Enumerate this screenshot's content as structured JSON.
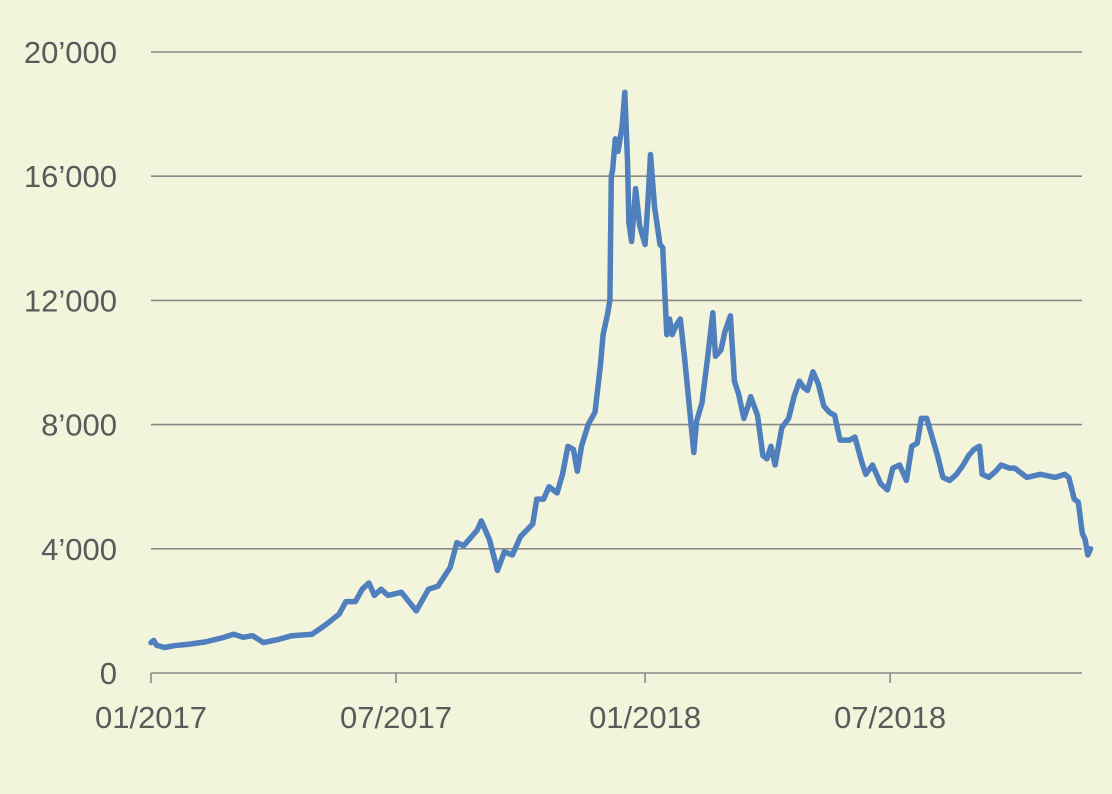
{
  "colors": {
    "background": "#f2f5dc",
    "line": "#4f7fbc",
    "grid": "#8a8a8a",
    "text": "#5a5a5a"
  },
  "chart_data": {
    "type": "line",
    "title": "",
    "xlabel": "",
    "ylabel": "",
    "ylim": [
      0,
      20000
    ],
    "xlim": [
      "2017-01-01",
      "2018-11-26"
    ],
    "grid": true,
    "y_ticks": [
      {
        "value": 0,
        "label": "0"
      },
      {
        "value": 4000,
        "label": "4’000"
      },
      {
        "value": 8000,
        "label": "8’000"
      },
      {
        "value": 12000,
        "label": "12’000"
      },
      {
        "value": 16000,
        "label": "16’000"
      },
      {
        "value": 20000,
        "label": "20’000"
      }
    ],
    "x_ticks": [
      {
        "value": "2017-01-01",
        "label": "01/2017"
      },
      {
        "value": "2017-07-01",
        "label": "07/2017"
      },
      {
        "value": "2018-01-01",
        "label": "01/2018"
      },
      {
        "value": "2018-07-01",
        "label": "07/2018"
      }
    ],
    "series": [
      {
        "points": [
          [
            "2017-01-01",
            980
          ],
          [
            "2017-01-03",
            1050
          ],
          [
            "2017-01-05",
            900
          ],
          [
            "2017-01-11",
            820
          ],
          [
            "2017-01-18",
            880
          ],
          [
            "2017-01-28",
            920
          ],
          [
            "2017-02-10",
            1000
          ],
          [
            "2017-02-24",
            1150
          ],
          [
            "2017-03-03",
            1250
          ],
          [
            "2017-03-10",
            1150
          ],
          [
            "2017-03-17",
            1200
          ],
          [
            "2017-03-25",
            980
          ],
          [
            "2017-04-05",
            1080
          ],
          [
            "2017-04-15",
            1200
          ],
          [
            "2017-04-30",
            1250
          ],
          [
            "2017-05-10",
            1550
          ],
          [
            "2017-05-20",
            1900
          ],
          [
            "2017-05-25",
            2300
          ],
          [
            "2017-06-01",
            2300
          ],
          [
            "2017-06-06",
            2700
          ],
          [
            "2017-06-11",
            2900
          ],
          [
            "2017-06-15",
            2500
          ],
          [
            "2017-06-20",
            2700
          ],
          [
            "2017-06-25",
            2500
          ],
          [
            "2017-07-05",
            2600
          ],
          [
            "2017-07-16",
            2000
          ],
          [
            "2017-07-25",
            2700
          ],
          [
            "2017-08-01",
            2800
          ],
          [
            "2017-08-10",
            3400
          ],
          [
            "2017-08-15",
            4200
          ],
          [
            "2017-08-20",
            4100
          ],
          [
            "2017-08-30",
            4600
          ],
          [
            "2017-09-02",
            4900
          ],
          [
            "2017-09-08",
            4300
          ],
          [
            "2017-09-14",
            3300
          ],
          [
            "2017-09-19",
            3900
          ],
          [
            "2017-09-25",
            3800
          ],
          [
            "2017-10-01",
            4400
          ],
          [
            "2017-10-10",
            4800
          ],
          [
            "2017-10-13",
            5600
          ],
          [
            "2017-10-18",
            5600
          ],
          [
            "2017-10-22",
            6000
          ],
          [
            "2017-10-28",
            5800
          ],
          [
            "2017-11-01",
            6400
          ],
          [
            "2017-11-05",
            7300
          ],
          [
            "2017-11-09",
            7200
          ],
          [
            "2017-11-12",
            6500
          ],
          [
            "2017-11-15",
            7300
          ],
          [
            "2017-11-20",
            8000
          ],
          [
            "2017-11-25",
            8400
          ],
          [
            "2017-11-29",
            9900
          ],
          [
            "2017-12-01",
            10900
          ],
          [
            "2017-12-04",
            11500
          ],
          [
            "2017-12-06",
            12000
          ],
          [
            "2017-12-07",
            16000
          ],
          [
            "2017-12-08",
            16200
          ],
          [
            "2017-12-10",
            17200
          ],
          [
            "2017-12-12",
            16800
          ],
          [
            "2017-12-15",
            17600
          ],
          [
            "2017-12-17",
            18700
          ],
          [
            "2017-12-19",
            16500
          ],
          [
            "2017-12-20",
            14500
          ],
          [
            "2017-12-22",
            13900
          ],
          [
            "2017-12-25",
            15600
          ],
          [
            "2017-12-28",
            14400
          ],
          [
            "2018-01-01",
            13800
          ],
          [
            "2018-01-03",
            15100
          ],
          [
            "2018-01-05",
            16700
          ],
          [
            "2018-01-08",
            15000
          ],
          [
            "2018-01-10",
            14400
          ],
          [
            "2018-01-12",
            13800
          ],
          [
            "2018-01-14",
            13700
          ],
          [
            "2018-01-17",
            10900
          ],
          [
            "2018-01-19",
            11400
          ],
          [
            "2018-01-21",
            10900
          ],
          [
            "2018-01-24",
            11200
          ],
          [
            "2018-01-27",
            11400
          ],
          [
            "2018-01-30",
            10200
          ],
          [
            "2018-02-02",
            8900
          ],
          [
            "2018-02-06",
            7100
          ],
          [
            "2018-02-08",
            8100
          ],
          [
            "2018-02-12",
            8700
          ],
          [
            "2018-02-16",
            10100
          ],
          [
            "2018-02-20",
            11600
          ],
          [
            "2018-02-22",
            10200
          ],
          [
            "2018-02-26",
            10400
          ],
          [
            "2018-03-01",
            11000
          ],
          [
            "2018-03-05",
            11500
          ],
          [
            "2018-03-08",
            9400
          ],
          [
            "2018-03-11",
            9000
          ],
          [
            "2018-03-15",
            8200
          ],
          [
            "2018-03-18",
            8600
          ],
          [
            "2018-03-20",
            8900
          ],
          [
            "2018-03-25",
            8300
          ],
          [
            "2018-03-29",
            7000
          ],
          [
            "2018-04-01",
            6900
          ],
          [
            "2018-04-04",
            7300
          ],
          [
            "2018-04-07",
            6700
          ],
          [
            "2018-04-12",
            7900
          ],
          [
            "2018-04-17",
            8200
          ],
          [
            "2018-04-21",
            8900
          ],
          [
            "2018-04-25",
            9400
          ],
          [
            "2018-04-28",
            9200
          ],
          [
            "2018-05-01",
            9100
          ],
          [
            "2018-05-05",
            9700
          ],
          [
            "2018-05-09",
            9300
          ],
          [
            "2018-05-13",
            8600
          ],
          [
            "2018-05-17",
            8400
          ],
          [
            "2018-05-21",
            8300
          ],
          [
            "2018-05-25",
            7500
          ],
          [
            "2018-06-01",
            7500
          ],
          [
            "2018-06-05",
            7600
          ],
          [
            "2018-06-10",
            6800
          ],
          [
            "2018-06-13",
            6400
          ],
          [
            "2018-06-18",
            6700
          ],
          [
            "2018-06-24",
            6100
          ],
          [
            "2018-06-29",
            5900
          ],
          [
            "2018-07-03",
            6600
          ],
          [
            "2018-07-08",
            6700
          ],
          [
            "2018-07-13",
            6200
          ],
          [
            "2018-07-17",
            7300
          ],
          [
            "2018-07-21",
            7400
          ],
          [
            "2018-07-24",
            8200
          ],
          [
            "2018-07-28",
            8200
          ],
          [
            "2018-08-01",
            7600
          ],
          [
            "2018-08-05",
            7000
          ],
          [
            "2018-08-09",
            6300
          ],
          [
            "2018-08-14",
            6200
          ],
          [
            "2018-08-19",
            6400
          ],
          [
            "2018-08-24",
            6700
          ],
          [
            "2018-08-28",
            7000
          ],
          [
            "2018-09-01",
            7200
          ],
          [
            "2018-09-05",
            7300
          ],
          [
            "2018-09-07",
            6400
          ],
          [
            "2018-09-12",
            6300
          ],
          [
            "2018-09-17",
            6500
          ],
          [
            "2018-09-21",
            6700
          ],
          [
            "2018-09-27",
            6600
          ],
          [
            "2018-10-01",
            6600
          ],
          [
            "2018-10-10",
            6300
          ],
          [
            "2018-10-20",
            6400
          ],
          [
            "2018-10-31",
            6300
          ],
          [
            "2018-11-07",
            6400
          ],
          [
            "2018-11-10",
            6300
          ],
          [
            "2018-11-14",
            5600
          ],
          [
            "2018-11-17",
            5500
          ],
          [
            "2018-11-20",
            4500
          ],
          [
            "2018-11-22",
            4300
          ],
          [
            "2018-11-24",
            3800
          ],
          [
            "2018-11-26",
            4000
          ]
        ]
      }
    ]
  }
}
